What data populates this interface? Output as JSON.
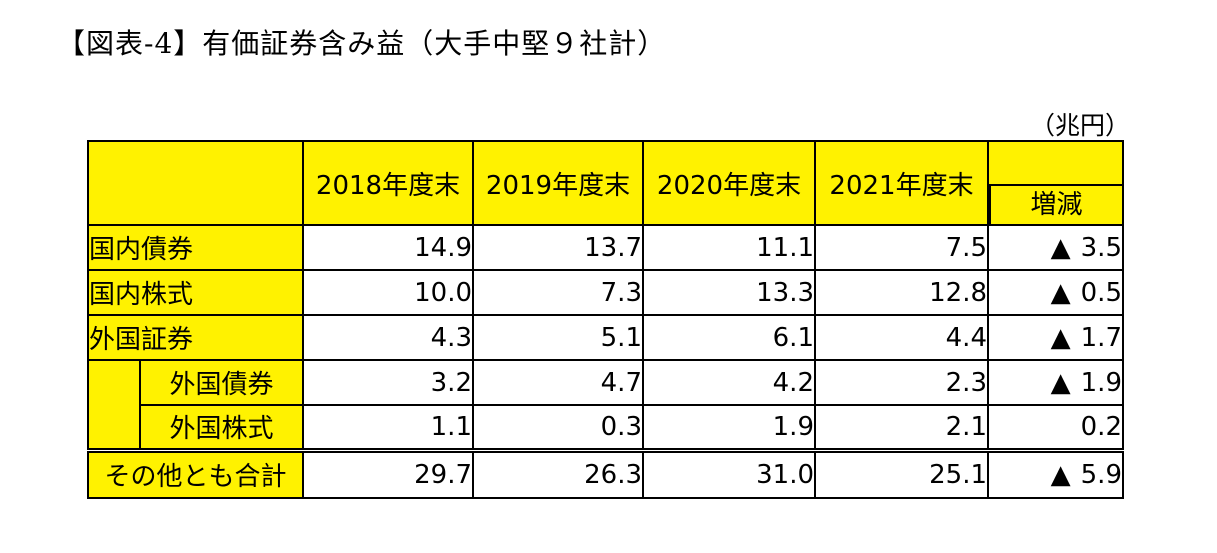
{
  "title": "【図表-4】有価証券含み益（大手中堅９社計）",
  "unit": "（兆円）",
  "chart_data": {
    "type": "table",
    "columns": [
      "2018年度末",
      "2019年度末",
      "2020年度末",
      "2021年度末",
      "増減"
    ],
    "decrease_marker": "▲",
    "rows": [
      {
        "label": "国内債券",
        "values": [
          "14.9",
          "13.7",
          "11.1",
          "7.5"
        ],
        "change": "3.5",
        "change_negative": true
      },
      {
        "label": "国内株式",
        "values": [
          "10.0",
          "7.3",
          "13.3",
          "12.8"
        ],
        "change": "0.5",
        "change_negative": true
      },
      {
        "label": "外国証券",
        "values": [
          "4.3",
          "5.1",
          "6.1",
          "4.4"
        ],
        "change": "1.7",
        "change_negative": true
      },
      {
        "label": "外国債券",
        "values": [
          "3.2",
          "4.7",
          "4.2",
          "2.3"
        ],
        "change": "1.9",
        "change_negative": true
      },
      {
        "label": "外国株式",
        "values": [
          "1.1",
          "0.3",
          "1.9",
          "2.1"
        ],
        "change": "0.2",
        "change_negative": false
      },
      {
        "label": "その他とも合計",
        "values": [
          "29.7",
          "26.3",
          "31.0",
          "25.1"
        ],
        "change": "5.9",
        "change_negative": true
      }
    ],
    "colors": {
      "header_fill": "#fff200",
      "body_fill": "#ffffff",
      "border": "#000000"
    }
  }
}
